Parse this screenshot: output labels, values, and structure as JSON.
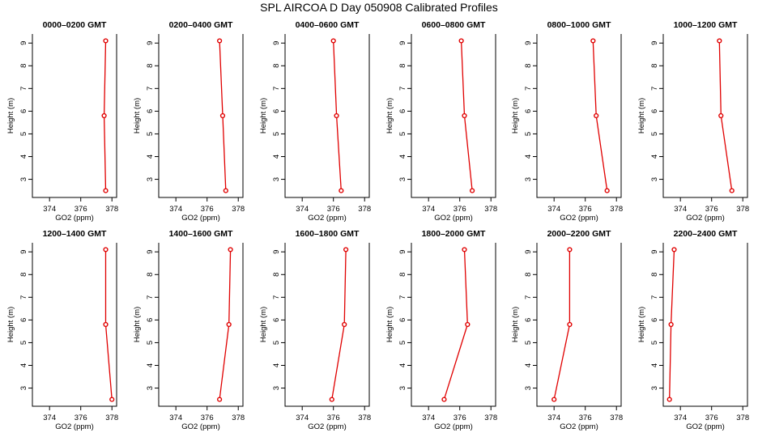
{
  "figure": {
    "title": "SPL AIRCOA D  Day 050908  Calibrated Profiles"
  },
  "colors": {
    "line": "#e00000",
    "axis": "#000000",
    "background": "#ffffff"
  },
  "chart_data": [
    {
      "type": "line",
      "title": "0000–0200 GMT",
      "xlabel": "GO2 (ppm)",
      "ylabel": "Height (m)",
      "xlim": [
        372.9,
        378.3
      ],
      "ylim": [
        2.2,
        9.4
      ],
      "xticks": [
        374,
        376,
        378
      ],
      "yticks": [
        3,
        4,
        5,
        6,
        7,
        8,
        9
      ],
      "grid": false,
      "series": [
        {
          "x": [
            377.6,
            377.5,
            377.6
          ],
          "y": [
            9.1,
            5.8,
            2.5
          ]
        }
      ]
    },
    {
      "type": "line",
      "title": "0200–0400 GMT",
      "xlabel": "GO2 (ppm)",
      "ylabel": "Height (m)",
      "xlim": [
        372.9,
        378.3
      ],
      "ylim": [
        2.2,
        9.4
      ],
      "xticks": [
        374,
        376,
        378
      ],
      "yticks": [
        3,
        4,
        5,
        6,
        7,
        8,
        9
      ],
      "grid": false,
      "series": [
        {
          "x": [
            376.8,
            377.0,
            377.2
          ],
          "y": [
            9.1,
            5.8,
            2.5
          ]
        }
      ]
    },
    {
      "type": "line",
      "title": "0400–0600 GMT",
      "xlabel": "GO2 (ppm)",
      "ylabel": "Height (m)",
      "xlim": [
        372.9,
        378.3
      ],
      "ylim": [
        2.2,
        9.4
      ],
      "xticks": [
        374,
        376,
        378
      ],
      "yticks": [
        3,
        4,
        5,
        6,
        7,
        8,
        9
      ],
      "grid": false,
      "series": [
        {
          "x": [
            376.0,
            376.2,
            376.5
          ],
          "y": [
            9.1,
            5.8,
            2.5
          ]
        }
      ]
    },
    {
      "type": "line",
      "title": "0600–0800 GMT",
      "xlabel": "GO2 (ppm)",
      "ylabel": "Height (m)",
      "xlim": [
        372.9,
        378.3
      ],
      "ylim": [
        2.2,
        9.4
      ],
      "xticks": [
        374,
        376,
        378
      ],
      "yticks": [
        3,
        4,
        5,
        6,
        7,
        8,
        9
      ],
      "grid": false,
      "series": [
        {
          "x": [
            376.1,
            376.3,
            376.8
          ],
          "y": [
            9.1,
            5.8,
            2.5
          ]
        }
      ]
    },
    {
      "type": "line",
      "title": "0800–1000 GMT",
      "xlabel": "GO2 (ppm)",
      "ylabel": "Height (m)",
      "xlim": [
        372.9,
        378.3
      ],
      "ylim": [
        2.2,
        9.4
      ],
      "xticks": [
        374,
        376,
        378
      ],
      "yticks": [
        3,
        4,
        5,
        6,
        7,
        8,
        9
      ],
      "grid": false,
      "series": [
        {
          "x": [
            376.5,
            376.7,
            377.4
          ],
          "y": [
            9.1,
            5.8,
            2.5
          ]
        }
      ]
    },
    {
      "type": "line",
      "title": "1000–1200 GMT",
      "xlabel": "GO2 (ppm)",
      "ylabel": "Height (m)",
      "xlim": [
        372.9,
        378.3
      ],
      "ylim": [
        2.2,
        9.4
      ],
      "xticks": [
        374,
        376,
        378
      ],
      "yticks": [
        3,
        4,
        5,
        6,
        7,
        8,
        9
      ],
      "grid": false,
      "series": [
        {
          "x": [
            376.5,
            376.6,
            377.3
          ],
          "y": [
            9.1,
            5.8,
            2.5
          ]
        }
      ]
    },
    {
      "type": "line",
      "title": "1200–1400 GMT",
      "xlabel": "GO2 (ppm)",
      "ylabel": "Height (m)",
      "xlim": [
        372.9,
        378.3
      ],
      "ylim": [
        2.2,
        9.4
      ],
      "xticks": [
        374,
        376,
        378
      ],
      "yticks": [
        3,
        4,
        5,
        6,
        7,
        8,
        9
      ],
      "grid": false,
      "series": [
        {
          "x": [
            377.6,
            377.6,
            378.0
          ],
          "y": [
            9.1,
            5.8,
            2.5
          ]
        }
      ]
    },
    {
      "type": "line",
      "title": "1400–1600 GMT",
      "xlabel": "GO2 (ppm)",
      "ylabel": "Height (m)",
      "xlim": [
        372.9,
        378.3
      ],
      "ylim": [
        2.2,
        9.4
      ],
      "xticks": [
        374,
        376,
        378
      ],
      "yticks": [
        3,
        4,
        5,
        6,
        7,
        8,
        9
      ],
      "grid": false,
      "series": [
        {
          "x": [
            377.5,
            377.4,
            376.8
          ],
          "y": [
            9.1,
            5.8,
            2.5
          ]
        }
      ]
    },
    {
      "type": "line",
      "title": "1600–1800 GMT",
      "xlabel": "GO2 (ppm)",
      "ylabel": "Height (m)",
      "xlim": [
        372.9,
        378.3
      ],
      "ylim": [
        2.2,
        9.4
      ],
      "xticks": [
        374,
        376,
        378
      ],
      "yticks": [
        3,
        4,
        5,
        6,
        7,
        8,
        9
      ],
      "grid": false,
      "series": [
        {
          "x": [
            376.8,
            376.7,
            375.9
          ],
          "y": [
            9.1,
            5.8,
            2.5
          ]
        }
      ]
    },
    {
      "type": "line",
      "title": "1800–2000 GMT",
      "xlabel": "GO2 (ppm)",
      "ylabel": "Height (m)",
      "xlim": [
        372.9,
        378.3
      ],
      "ylim": [
        2.2,
        9.4
      ],
      "xticks": [
        374,
        376,
        378
      ],
      "yticks": [
        3,
        4,
        5,
        6,
        7,
        8,
        9
      ],
      "grid": false,
      "series": [
        {
          "x": [
            376.3,
            376.5,
            375.0
          ],
          "y": [
            9.1,
            5.8,
            2.5
          ]
        }
      ]
    },
    {
      "type": "line",
      "title": "2000–2200 GMT",
      "xlabel": "GO2 (ppm)",
      "ylabel": "Height (m)",
      "xlim": [
        372.9,
        378.3
      ],
      "ylim": [
        2.2,
        9.4
      ],
      "xticks": [
        374,
        376,
        378
      ],
      "yticks": [
        3,
        4,
        5,
        6,
        7,
        8,
        9
      ],
      "grid": false,
      "series": [
        {
          "x": [
            375.0,
            375.0,
            374.0
          ],
          "y": [
            9.1,
            5.8,
            2.5
          ]
        }
      ]
    },
    {
      "type": "line",
      "title": "2200–2400 GMT",
      "xlabel": "GO2 (ppm)",
      "ylabel": "Height (m)",
      "xlim": [
        372.9,
        378.3
      ],
      "ylim": [
        2.2,
        9.4
      ],
      "xticks": [
        374,
        376,
        378
      ],
      "yticks": [
        3,
        4,
        5,
        6,
        7,
        8,
        9
      ],
      "grid": false,
      "series": [
        {
          "x": [
            373.6,
            373.4,
            373.3
          ],
          "y": [
            9.1,
            5.8,
            2.5
          ]
        }
      ]
    }
  ]
}
